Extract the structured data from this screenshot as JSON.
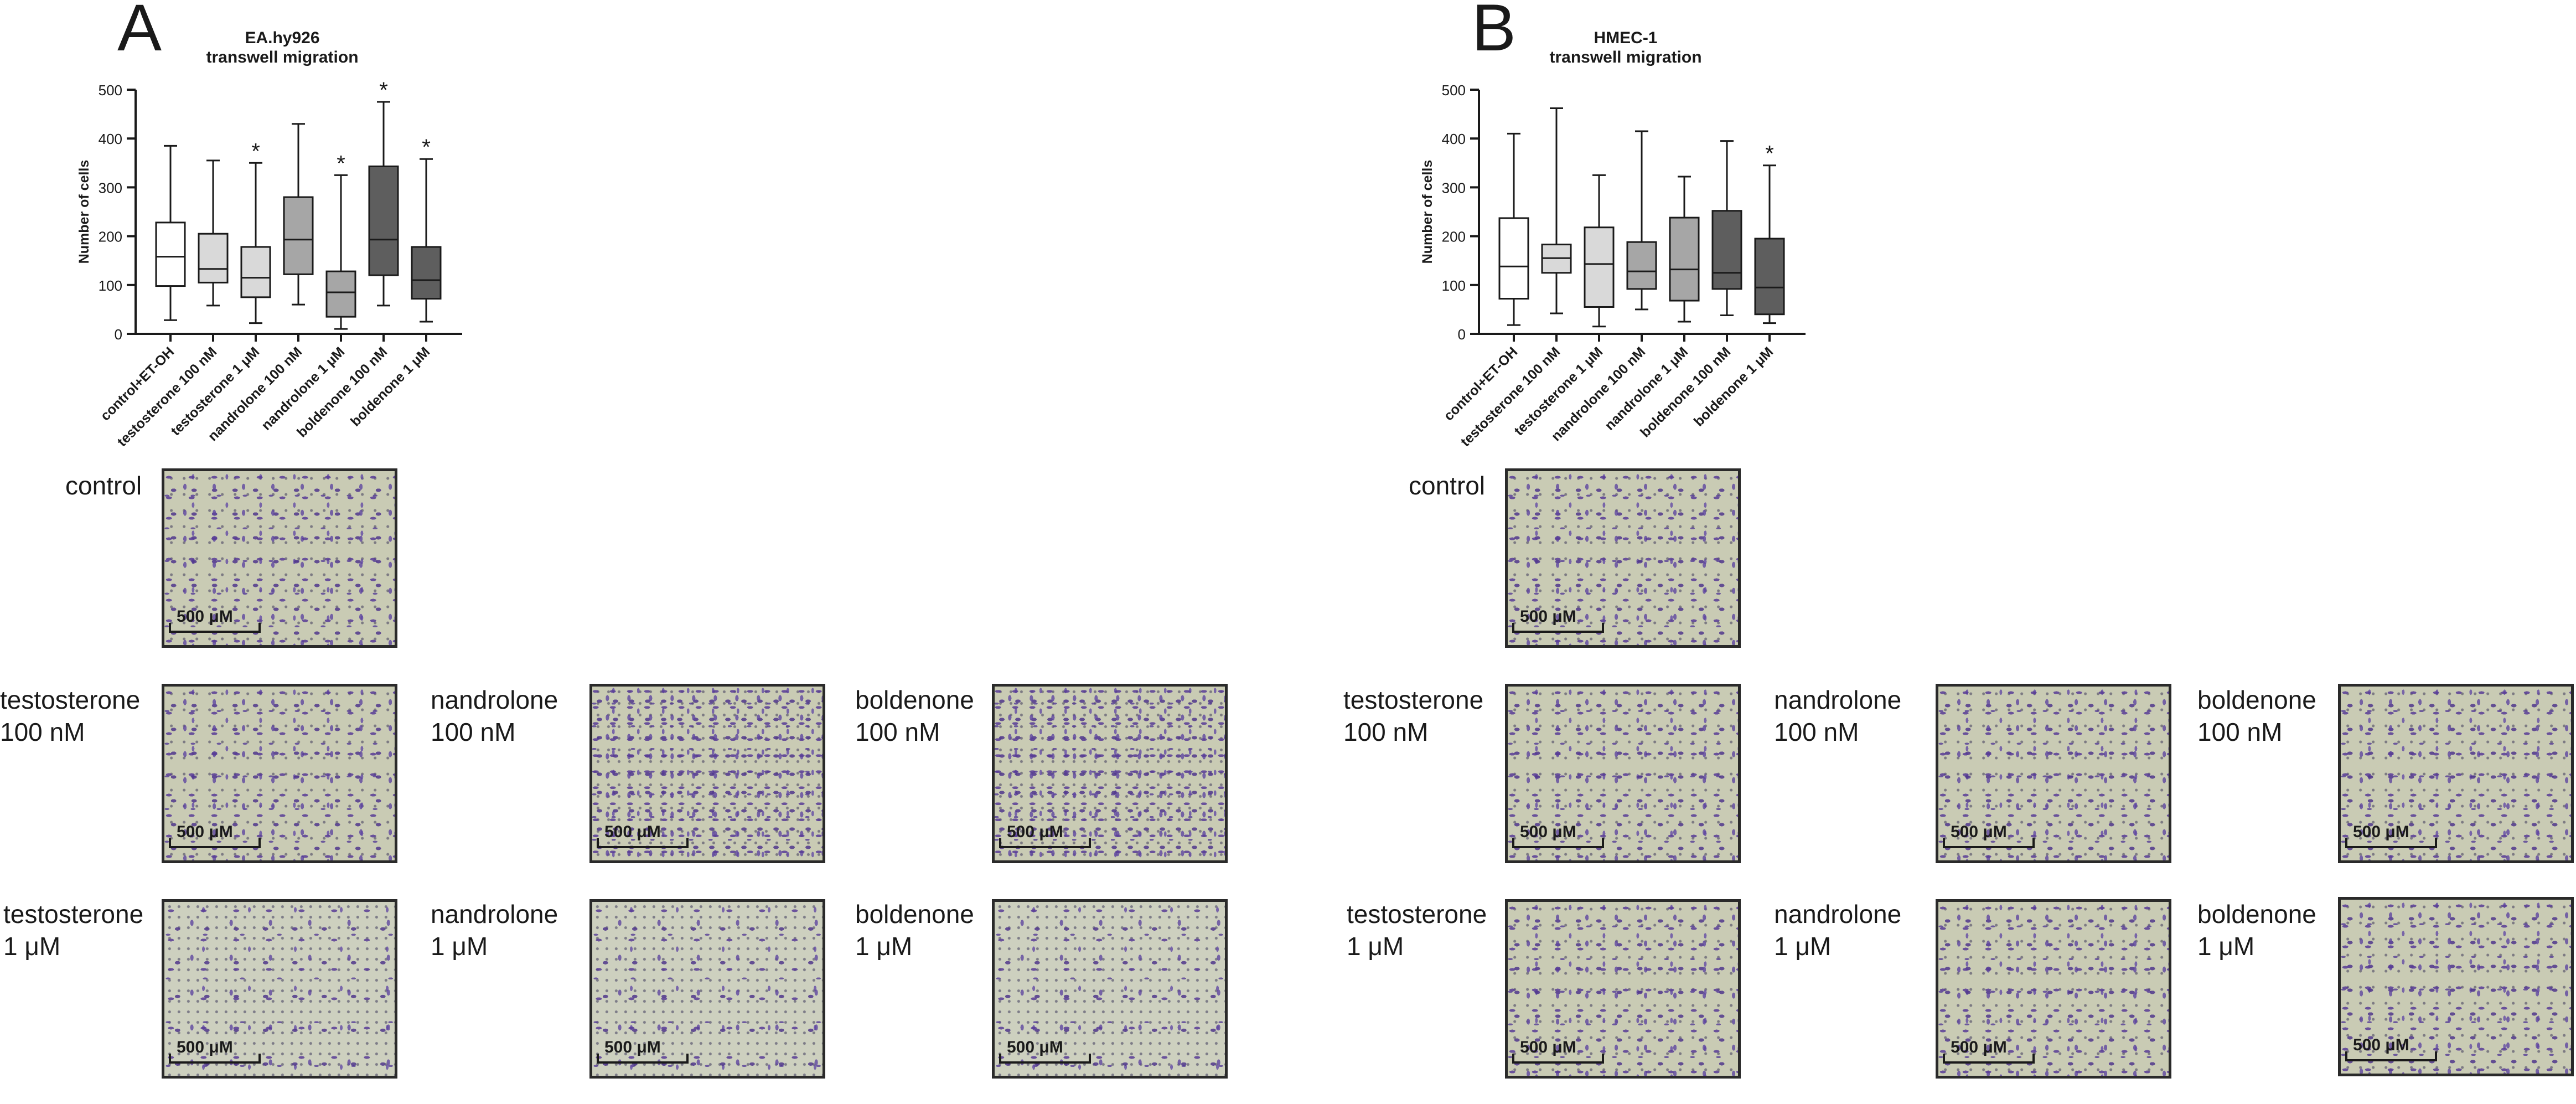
{
  "chart_data": [
    {
      "panel": "A",
      "type": "box",
      "title": "EA.hy926\ntranswell migration",
      "ylabel": "Number of cells",
      "xlabel": "",
      "ylim": [
        0,
        500
      ],
      "yticks": [
        0,
        100,
        200,
        300,
        400,
        500
      ],
      "grid": false,
      "categories": [
        "control+ET-OH",
        "testosterone 100 nM",
        "testosterone 1 μM",
        "nandrolone 100 nM",
        "nandrolone 1 μM",
        "boldenone 100 nM",
        "boldenone 1 μM"
      ],
      "fills": [
        "#ffffff",
        "#d9d9d9",
        "#d9d9d9",
        "#a6a6a6",
        "#a6a6a6",
        "#5e5e5e",
        "#5e5e5e"
      ],
      "boxes": [
        {
          "min": 28,
          "q1": 98,
          "median": 158,
          "q3": 228,
          "max": 385,
          "significant": false
        },
        {
          "min": 58,
          "q1": 105,
          "median": 133,
          "q3": 205,
          "max": 355,
          "significant": false
        },
        {
          "min": 22,
          "q1": 75,
          "median": 115,
          "q3": 178,
          "max": 350,
          "significant": true
        },
        {
          "min": 60,
          "q1": 122,
          "median": 193,
          "q3": 280,
          "max": 430,
          "significant": false
        },
        {
          "min": 10,
          "q1": 35,
          "median": 85,
          "q3": 128,
          "max": 325,
          "significant": true
        },
        {
          "min": 58,
          "q1": 120,
          "median": 193,
          "q3": 343,
          "max": 475,
          "significant": true
        },
        {
          "min": 25,
          "q1": 72,
          "median": 110,
          "q3": 178,
          "max": 358,
          "significant": true
        }
      ],
      "annotation_mark": "*"
    },
    {
      "panel": "B",
      "type": "box",
      "title": "HMEC-1\ntranswell migration",
      "ylabel": "Number of cells",
      "xlabel": "",
      "ylim": [
        0,
        500
      ],
      "yticks": [
        0,
        100,
        200,
        300,
        400,
        500
      ],
      "grid": false,
      "categories": [
        "control+ET-OH",
        "testosterone 100 nM",
        "testosterone 1 μM",
        "nandrolone 100 nM",
        "nandrolone 1 μM",
        "boldenone 100 nM",
        "boldenone 1 μM"
      ],
      "fills": [
        "#ffffff",
        "#d9d9d9",
        "#d9d9d9",
        "#a6a6a6",
        "#a6a6a6",
        "#5e5e5e",
        "#5e5e5e"
      ],
      "boxes": [
        {
          "min": 18,
          "q1": 72,
          "median": 138,
          "q3": 237,
          "max": 410,
          "significant": false
        },
        {
          "min": 42,
          "q1": 125,
          "median": 155,
          "q3": 183,
          "max": 462,
          "significant": false
        },
        {
          "min": 15,
          "q1": 55,
          "median": 143,
          "q3": 218,
          "max": 325,
          "significant": false
        },
        {
          "min": 50,
          "q1": 92,
          "median": 128,
          "q3": 188,
          "max": 415,
          "significant": false
        },
        {
          "min": 25,
          "q1": 68,
          "median": 132,
          "q3": 238,
          "max": 322,
          "significant": false
        },
        {
          "min": 38,
          "q1": 92,
          "median": 125,
          "q3": 252,
          "max": 395,
          "significant": false
        },
        {
          "min": 22,
          "q1": 40,
          "median": 95,
          "q3": 195,
          "max": 345,
          "significant": true
        }
      ],
      "annotation_mark": "*"
    }
  ],
  "panels": {
    "A": {
      "letter": "A",
      "micrographs": [
        {
          "label_line1": "control",
          "label_line2": "",
          "scale": "500 μM"
        },
        {
          "label_line1": "testosterone",
          "label_line2": "100 nM",
          "scale": "500 μM"
        },
        {
          "label_line1": "nandrolone",
          "label_line2": "100 nM",
          "scale": "500 μM"
        },
        {
          "label_line1": "boldenone",
          "label_line2": "100 nM",
          "scale": "500 μM"
        },
        {
          "label_line1": "testosterone",
          "label_line2": "1 μM",
          "scale": "500 μM"
        },
        {
          "label_line1": "nandrolone",
          "label_line2": "1 μM",
          "scale": "500 μM"
        },
        {
          "label_line1": "boldenone",
          "label_line2": "1 μM",
          "scale": "500 μM"
        }
      ]
    },
    "B": {
      "letter": "B",
      "micrographs": [
        {
          "label_line1": "control",
          "label_line2": "",
          "scale": "500 μM"
        },
        {
          "label_line1": "testosterone",
          "label_line2": "100 nM",
          "scale": "500 μM"
        },
        {
          "label_line1": "nandrolone",
          "label_line2": "100 nM",
          "scale": "500 μM"
        },
        {
          "label_line1": "boldenone",
          "label_line2": "100 nM",
          "scale": "500 μM"
        },
        {
          "label_line1": "testosterone",
          "label_line2": "1 μM",
          "scale": "500 μM"
        },
        {
          "label_line1": "nandrolone",
          "label_line2": "1 μM",
          "scale": "500 μM"
        },
        {
          "label_line1": "boldenone",
          "label_line2": "1 μM",
          "scale": "500 μM"
        }
      ]
    }
  }
}
